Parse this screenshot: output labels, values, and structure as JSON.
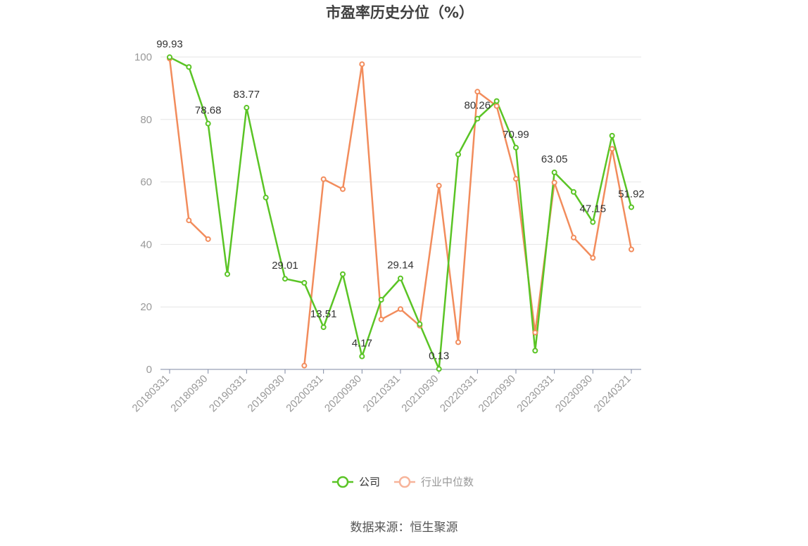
{
  "chart_data": {
    "type": "line",
    "title": "市盈率历史分位（%）",
    "source": "数据来源：恒生聚源",
    "ylim": [
      0,
      100
    ],
    "yticks": [
      "0",
      "20",
      "40",
      "60",
      "80",
      "100"
    ],
    "grid": true,
    "legend_position": "bottom",
    "x": [
      "20180331",
      "20180630",
      "20180930",
      "20181231",
      "20190331",
      "20190630",
      "20190930",
      "20191231",
      "20200331",
      "20200630",
      "20200930",
      "20201231",
      "20210331",
      "20210630",
      "20210930",
      "20211231",
      "20220331",
      "20220630",
      "20220930",
      "20221231",
      "20230331",
      "20230630",
      "20230930",
      "20231231",
      "20240321"
    ],
    "xtick_labels": [
      "20180331",
      "20180930",
      "20190331",
      "20190930",
      "20200331",
      "20200930",
      "20210331",
      "20210930",
      "20220331",
      "20220930",
      "20230331",
      "20230930",
      "20240321"
    ],
    "series": [
      {
        "name": "公司",
        "color": "#5ac425",
        "values": [
          99.93,
          96.8,
          78.68,
          30.5,
          83.77,
          55.0,
          29.01,
          27.7,
          13.51,
          30.5,
          4.17,
          22.3,
          29.14,
          14.5,
          0.13,
          68.8,
          80.26,
          85.9,
          70.99,
          6.0,
          63.05,
          56.8,
          47.15,
          74.8,
          51.92
        ],
        "labels": [
          "99.93",
          "",
          "78.68",
          "",
          "83.77",
          "",
          "29.01",
          "",
          "13.51",
          "",
          "4.17",
          "",
          "29.14",
          "",
          "0.13",
          "",
          "80.26",
          "",
          "70.99",
          "",
          "63.05",
          "",
          "47.15",
          "",
          "51.92"
        ]
      },
      {
        "name": "行业中位数",
        "color": "#f28c5c",
        "legend_color": "#f7b49a",
        "values": [
          99.5,
          47.7,
          41.7,
          null,
          null,
          null,
          null,
          1.2,
          60.9,
          57.7,
          97.7,
          16.0,
          19.3,
          14.0,
          58.8,
          8.7,
          88.9,
          84.3,
          61.0,
          11.8,
          59.8,
          42.2,
          35.7,
          70.6,
          38.4
        ]
      }
    ]
  }
}
